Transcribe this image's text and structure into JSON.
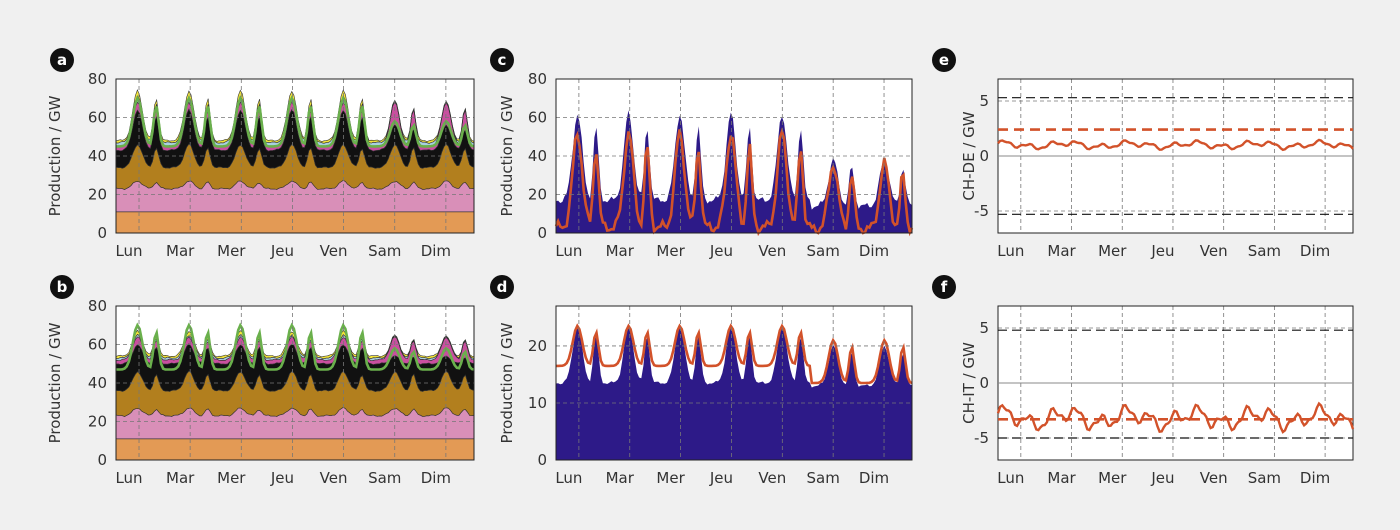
{
  "days": [
    "Lun",
    "Mar",
    "Mer",
    "Jeu",
    "Ven",
    "Sam",
    "Dim"
  ],
  "colors": {
    "nuclear": "#e39a55",
    "pink": "#d98fb8",
    "brown": "#b27f1e",
    "black": "#111111",
    "magenta": "#c94f9f",
    "lightblue": "#a9cfe0",
    "yellow": "#f3e43a",
    "green": "#6ab04c",
    "navy": "#2d1a88",
    "orange": "#d2522a"
  },
  "panels": [
    {
      "label": "a",
      "ylabel": "Production / GW",
      "yticks": [
        "0",
        "20",
        "40",
        "60",
        "80"
      ]
    },
    {
      "label": "b",
      "ylabel": "Production / GW",
      "yticks": [
        "0",
        "20",
        "40",
        "60",
        "80"
      ]
    },
    {
      "label": "c",
      "ylabel": "Production / GW",
      "yticks": [
        "0",
        "20",
        "40",
        "60",
        "80"
      ]
    },
    {
      "label": "d",
      "ylabel": "Production / GW",
      "yticks": [
        "0",
        "10",
        "20"
      ]
    },
    {
      "label": "e",
      "ylabel": "CH-DE / GW",
      "yticks": [
        "-5",
        "0",
        "5"
      ]
    },
    {
      "label": "f",
      "ylabel": "CH-IT / GW",
      "yticks": [
        "-5",
        "0",
        "5"
      ]
    }
  ],
  "chart_data": [
    {
      "panel": "a",
      "type": "area",
      "ylim": [
        0,
        80
      ],
      "grid": true,
      "categories": [
        "Lun",
        "Mar",
        "Mer",
        "Jeu",
        "Ven",
        "Sam",
        "Dim"
      ],
      "layers": [
        {
          "color": "nuclear",
          "day_base": 11,
          "day_peak": 11
        },
        {
          "color": "pink",
          "day_base": 23,
          "day_peak": 27
        },
        {
          "color": "brown",
          "day_base": 34,
          "day_peak": 46
        },
        {
          "color": "black",
          "day_base": 43,
          "day_peak": 64,
          "weekend_peak": 56
        },
        {
          "color": "magenta",
          "day_base": 45,
          "day_peak": 68
        },
        {
          "color": "lightblue",
          "day_base": 47,
          "day_peak": 71,
          "weekend_peak": 63
        },
        {
          "color": "yellow",
          "day_base": 48,
          "day_peak": 74,
          "weekend_peak": 64
        }
      ],
      "demand_line": {
        "color": "green",
        "day_base": 45,
        "day_peak": 70,
        "weekend_peak": 58
      }
    },
    {
      "panel": "b",
      "type": "area",
      "ylim": [
        0,
        80
      ],
      "grid": true,
      "categories": [
        "Lun",
        "Mar",
        "Mer",
        "Jeu",
        "Ven",
        "Sam",
        "Dim"
      ],
      "layers": [
        {
          "color": "nuclear",
          "day_base": 11,
          "day_peak": 11
        },
        {
          "color": "pink",
          "day_base": 23,
          "day_peak": 27
        },
        {
          "color": "brown",
          "day_base": 36,
          "day_peak": 46
        },
        {
          "color": "black",
          "day_base": 50,
          "day_peak": 60,
          "weekend_peak": 54
        },
        {
          "color": "magenta",
          "day_base": 52,
          "day_peak": 64
        },
        {
          "color": "lightblue",
          "day_base": 53,
          "day_peak": 65,
          "weekend_peak": 60
        },
        {
          "color": "yellow",
          "day_base": 54,
          "day_peak": 67,
          "weekend_peak": 61
        }
      ],
      "demand_line": {
        "color": "green",
        "day_base": 47,
        "day_peak": 70,
        "weekend_peak": 58
      }
    },
    {
      "panel": "c",
      "type": "area",
      "ylim": [
        0,
        80
      ],
      "grid": true,
      "categories": [
        "Lun",
        "Mar",
        "Mer",
        "Jeu",
        "Ven",
        "Sam",
        "Dim"
      ],
      "area": {
        "color": "navy",
        "day_base": 17,
        "day_peak": 62,
        "weekend_base": 14,
        "weekend_peak": 38
      },
      "line": {
        "color": "orange",
        "day_base": 3,
        "day_peak": 52,
        "weekend_base": 2,
        "weekend_peak": 36
      }
    },
    {
      "panel": "d",
      "type": "area",
      "ylim": [
        0,
        27
      ],
      "grid": true,
      "categories": [
        "Lun",
        "Mar",
        "Mer",
        "Jeu",
        "Ven",
        "Sam",
        "Dim"
      ],
      "area": {
        "color": "navy",
        "day_base": 13.5,
        "day_peak": 23.5,
        "weekend_base": 13,
        "weekend_peak": 20
      },
      "line": {
        "color": "orange",
        "day_base": 16.5,
        "day_peak": 23.5,
        "weekend_base": 13.5,
        "weekend_peak": 21
      }
    },
    {
      "panel": "e",
      "type": "line",
      "ylim": [
        -7,
        7
      ],
      "grid": true,
      "categories": [
        "Lun",
        "Mar",
        "Mer",
        "Jeu",
        "Ven",
        "Sam",
        "Dim"
      ],
      "limits": [
        5.3,
        -5.3
      ],
      "mean": 2.4,
      "flow": {
        "color": "orange",
        "base": 1.0,
        "amp": 0.35
      }
    },
    {
      "panel": "f",
      "type": "line",
      "ylim": [
        -7,
        7
      ],
      "grid": true,
      "categories": [
        "Lun",
        "Mar",
        "Mer",
        "Jeu",
        "Ven",
        "Sam",
        "Dim"
      ],
      "limits": [
        4.8,
        -5.0
      ],
      "mean": -3.3,
      "flow": {
        "color": "orange",
        "base": -3.2,
        "amp": 1.0
      }
    }
  ]
}
